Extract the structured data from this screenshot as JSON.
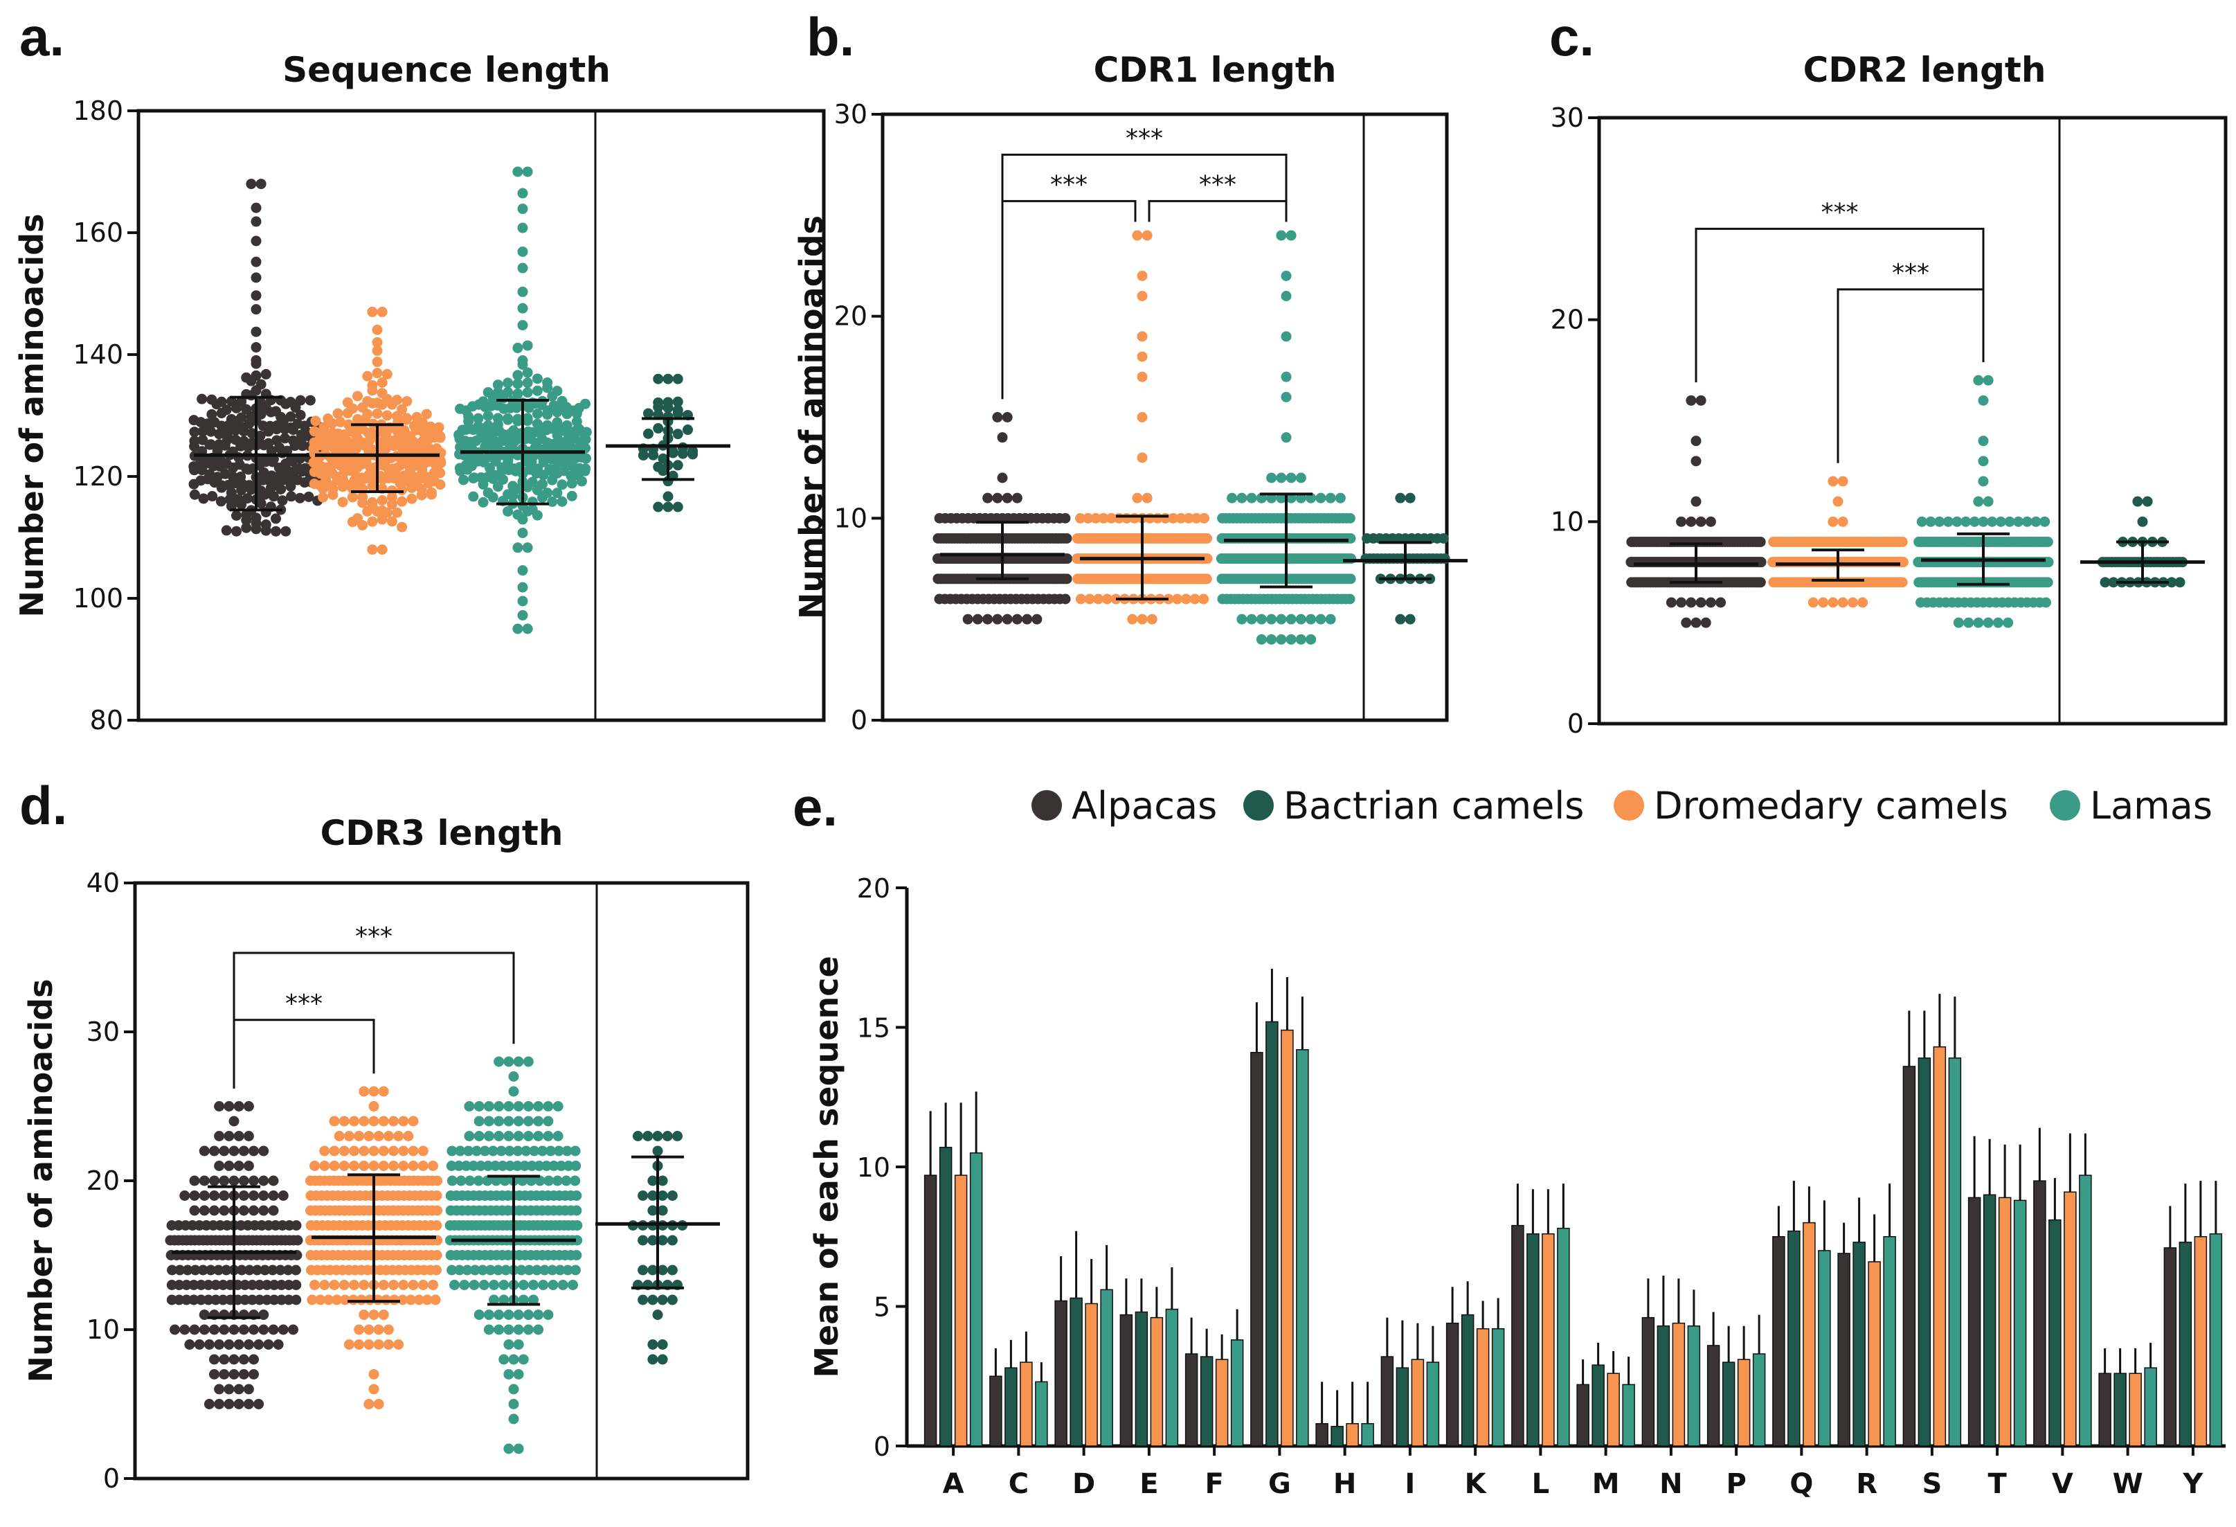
{
  "colors": {
    "alpacas": "#3a3333",
    "bactrian": "#1f5a4c",
    "dromedary": "#f7944f",
    "lamas": "#3a9b87",
    "axis": "#111111"
  },
  "legend": {
    "items": [
      {
        "key": "alpacas",
        "label": "Alpacas"
      },
      {
        "key": "bactrian",
        "label": "Bactrian camels"
      },
      {
        "key": "dromedary",
        "label": "Dromedary camels"
      },
      {
        "key": "lamas",
        "label": "Lamas"
      }
    ]
  },
  "chart_data": [
    {
      "id": "a",
      "letter": "a.",
      "type": "scatter",
      "title": "Sequence length",
      "ylabel": "Number of aminoacids",
      "ylim": [
        80,
        180
      ],
      "yticks": [
        80,
        100,
        120,
        140,
        160,
        180
      ],
      "groups": [
        {
          "key": "alpacas",
          "mean": 123.5,
          "sd_low": 114.5,
          "sd_high": 133,
          "min": 111,
          "max": 168,
          "center": 123.5,
          "spread": 6
        },
        {
          "key": "dromedary",
          "mean": 123.5,
          "sd_low": 117.5,
          "sd_high": 128.5,
          "min": 108,
          "max": 147,
          "center": 123.5,
          "spread": 4.5
        },
        {
          "key": "lamas",
          "mean": 124,
          "sd_low": 115.5,
          "sd_high": 132.5,
          "min": 95,
          "max": 170,
          "center": 125,
          "spread": 5
        },
        {
          "key": "bactrian",
          "mean": 125,
          "sd_low": 119.5,
          "sd_high": 129.5,
          "min": 115,
          "max": 136,
          "center": 124.5,
          "spread": 5
        }
      ],
      "significance": []
    },
    {
      "id": "b",
      "letter": "b.",
      "type": "scatter",
      "title": "CDR1 length",
      "ylabel": "Number of aminoacids",
      "ylim": [
        0,
        30
      ],
      "yticks": [
        0,
        10,
        20,
        30
      ],
      "groups": [
        {
          "key": "alpacas",
          "mean": 8.2,
          "sd_low": 7.0,
          "sd_high": 9.8,
          "min": 5,
          "max": 15,
          "center": 8,
          "spread": 1.2
        },
        {
          "key": "dromedary",
          "mean": 8.0,
          "sd_low": 6.0,
          "sd_high": 10.1,
          "min": 5,
          "max": 24,
          "center": 8,
          "spread": 1.0
        },
        {
          "key": "lamas",
          "mean": 8.9,
          "sd_low": 6.6,
          "sd_high": 11.2,
          "min": 4,
          "max": 24,
          "center": 8,
          "spread": 1.6
        },
        {
          "key": "bactrian",
          "mean": 7.9,
          "sd_low": 7.0,
          "sd_high": 8.8,
          "min": 5,
          "max": 11,
          "center": 8,
          "spread": 0.7
        }
      ],
      "significance": [
        {
          "from": 0,
          "to": 2,
          "label": "***",
          "level": 28
        },
        {
          "from": 0,
          "to": 1,
          "label": "***",
          "level": 25.7
        },
        {
          "from": 1,
          "to": 2,
          "label": "***",
          "level": 25.7
        }
      ]
    },
    {
      "id": "c",
      "letter": "c.",
      "type": "scatter",
      "title": "CDR2 length",
      "ylabel": "",
      "ylim": [
        0,
        30
      ],
      "yticks": [
        0,
        10,
        20,
        30
      ],
      "groups": [
        {
          "key": "alpacas",
          "mean": 7.9,
          "sd_low": 7.0,
          "sd_high": 8.9,
          "min": 5,
          "max": 16,
          "center": 8,
          "spread": 0.8
        },
        {
          "key": "dromedary",
          "mean": 7.9,
          "sd_low": 7.1,
          "sd_high": 8.6,
          "min": 6,
          "max": 12,
          "center": 8,
          "spread": 0.6
        },
        {
          "key": "lamas",
          "mean": 8.1,
          "sd_low": 6.9,
          "sd_high": 9.4,
          "min": 5,
          "max": 17,
          "center": 8,
          "spread": 1.0
        },
        {
          "key": "bactrian",
          "mean": 8.0,
          "sd_low": 7.0,
          "sd_high": 9.0,
          "min": 7,
          "max": 11,
          "center": 8,
          "spread": 0.7
        }
      ],
      "significance": [
        {
          "from": 0,
          "to": 2,
          "label": "***",
          "level": 24.5
        },
        {
          "from": 1,
          "to": 2,
          "label": "***",
          "level": 21.5
        }
      ]
    },
    {
      "id": "d",
      "letter": "d.",
      "type": "scatter",
      "title": "CDR3 length",
      "ylabel": "Number of aminoacids",
      "ylim": [
        0,
        40
      ],
      "yticks": [
        0,
        10,
        20,
        30,
        40
      ],
      "groups": [
        {
          "key": "alpacas",
          "mean": 15.2,
          "sd_low": 10.8,
          "sd_high": 19.6,
          "min": 5,
          "max": 25,
          "center": 15,
          "spread": 4
        },
        {
          "key": "dromedary",
          "mean": 16.2,
          "sd_low": 11.9,
          "sd_high": 20.4,
          "min": 5,
          "max": 26,
          "center": 17,
          "spread": 3.5
        },
        {
          "key": "lamas",
          "mean": 16.0,
          "sd_low": 11.7,
          "sd_high": 20.3,
          "min": 2,
          "max": 28,
          "center": 17,
          "spread": 3.8
        },
        {
          "key": "bactrian",
          "mean": 17.1,
          "sd_low": 12.8,
          "sd_high": 21.6,
          "min": 8,
          "max": 23,
          "center": 17,
          "spread": 4
        }
      ],
      "significance": [
        {
          "from": 0,
          "to": 2,
          "label": "***",
          "level": 35.3
        },
        {
          "from": 0,
          "to": 1,
          "label": "***",
          "level": 30.8
        }
      ]
    },
    {
      "id": "e",
      "letter": "e.",
      "type": "bar",
      "title": "",
      "ylabel": "Mean of each sequence",
      "xlabel": "",
      "ylim": [
        0,
        20
      ],
      "yticks": [
        0,
        5,
        10,
        15,
        20
      ],
      "categories": [
        "A",
        "C",
        "D",
        "E",
        "F",
        "G",
        "H",
        "I",
        "K",
        "L",
        "M",
        "N",
        "P",
        "Q",
        "R",
        "S",
        "T",
        "V",
        "W",
        "Y"
      ],
      "series": [
        {
          "key": "alpacas",
          "name": "Alpacas",
          "values": [
            9.7,
            2.5,
            5.2,
            4.7,
            3.3,
            14.1,
            0.8,
            3.2,
            4.4,
            7.9,
            2.2,
            4.6,
            3.6,
            7.5,
            6.9,
            13.6,
            8.9,
            9.5,
            2.6,
            7.1
          ],
          "errors": [
            2.3,
            1.0,
            1.6,
            1.3,
            1.3,
            1.8,
            1.5,
            1.4,
            1.3,
            1.5,
            0.9,
            1.4,
            1.2,
            1.1,
            1.1,
            2.0,
            2.2,
            1.9,
            0.9,
            1.5
          ]
        },
        {
          "key": "bactrian",
          "name": "Bactrian camels",
          "values": [
            10.7,
            2.8,
            5.3,
            4.8,
            3.2,
            15.2,
            0.7,
            2.8,
            4.7,
            7.6,
            2.9,
            4.3,
            3.0,
            7.7,
            7.3,
            13.9,
            9.0,
            8.1,
            2.6,
            7.3
          ],
          "errors": [
            1.6,
            1.0,
            2.4,
            1.2,
            1.0,
            1.9,
            1.3,
            1.7,
            1.2,
            1.6,
            0.8,
            1.8,
            1.3,
            1.8,
            1.6,
            1.7,
            2.0,
            1.5,
            0.9,
            2.1
          ]
        },
        {
          "key": "dromedary",
          "name": "Dromedary camels",
          "values": [
            9.7,
            3.0,
            5.1,
            4.6,
            3.1,
            14.9,
            0.8,
            3.1,
            4.2,
            7.6,
            2.6,
            4.4,
            3.1,
            8.0,
            6.6,
            14.3,
            8.9,
            9.1,
            2.6,
            7.5
          ],
          "errors": [
            2.6,
            1.1,
            1.6,
            1.1,
            0.9,
            1.9,
            1.5,
            1.3,
            1.0,
            1.6,
            0.8,
            1.6,
            1.2,
            1.3,
            1.7,
            1.9,
            1.9,
            2.1,
            0.9,
            2.0
          ]
        },
        {
          "key": "lamas",
          "name": "Lamas",
          "values": [
            10.5,
            2.3,
            5.6,
            4.9,
            3.8,
            14.2,
            0.8,
            3.0,
            4.2,
            7.8,
            2.2,
            4.3,
            3.3,
            7.0,
            7.5,
            13.9,
            8.8,
            9.7,
            2.8,
            7.6
          ],
          "errors": [
            2.2,
            0.7,
            1.6,
            1.5,
            1.1,
            1.9,
            1.5,
            1.3,
            1.1,
            1.6,
            1.0,
            1.3,
            1.4,
            1.8,
            1.9,
            2.2,
            2.0,
            1.5,
            0.9,
            1.9
          ]
        }
      ]
    }
  ]
}
